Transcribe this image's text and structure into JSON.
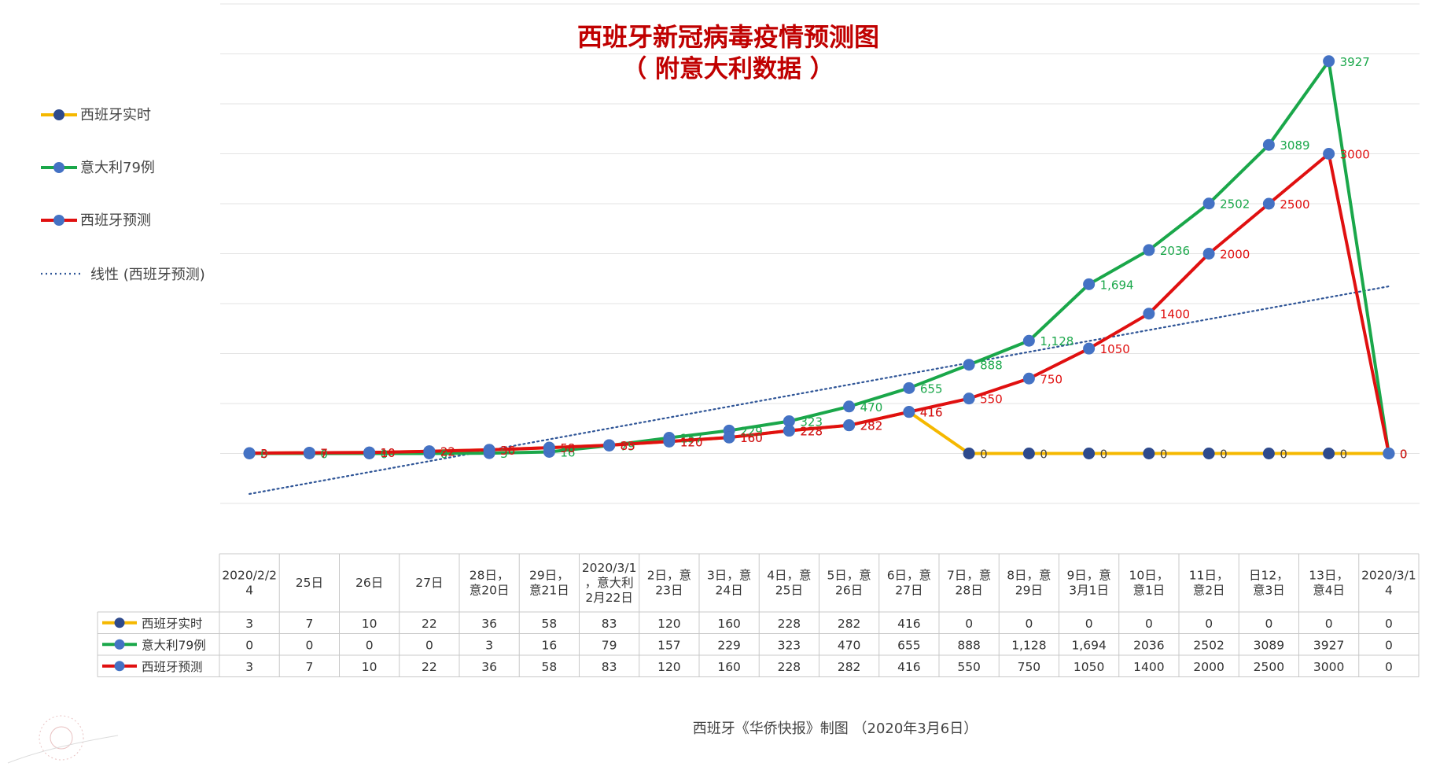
{
  "chart_data": {
    "type": "line",
    "title": "西班牙新冠病毒疫情预测图",
    "subtitle": "（ 附意大利数据 ）",
    "categories": [
      [
        "2020/2/2",
        "4"
      ],
      [
        "25日"
      ],
      [
        "26日"
      ],
      [
        "27日"
      ],
      [
        "28日，",
        "意20日"
      ],
      [
        "29日，",
        "意21日"
      ],
      [
        "2020/3/1",
        "，意大利",
        "2月22日"
      ],
      [
        "2日，意",
        "23日"
      ],
      [
        "3日，意",
        "24日"
      ],
      [
        "4日，意",
        "25日"
      ],
      [
        "5日，意",
        "26日"
      ],
      [
        "6日，意",
        "27日"
      ],
      [
        "7日，意",
        "28日"
      ],
      [
        "8日，意",
        "29日"
      ],
      [
        "9日，意",
        "3月1日"
      ],
      [
        "10日，",
        "意1日"
      ],
      [
        "11日，",
        "意2日"
      ],
      [
        "日12，",
        "意3日"
      ],
      [
        "13日，",
        "意4日"
      ],
      [
        "2020/3/1",
        "4"
      ]
    ],
    "series": [
      {
        "name": "西班牙实时",
        "color": "#f5b800",
        "marker": "#2e4a8c",
        "values": [
          3,
          7,
          10,
          22,
          36,
          58,
          83,
          120,
          160,
          228,
          282,
          416,
          0,
          0,
          0,
          0,
          0,
          0,
          0,
          0
        ],
        "labels": [
          "3",
          "7",
          "10",
          "22",
          "36",
          "58",
          "83",
          "120",
          "160",
          "228",
          "282",
          "416",
          "0",
          "0",
          "0",
          "0",
          "0",
          "0",
          "0",
          "0"
        ]
      },
      {
        "name": "意大利79例",
        "color": "#1aa74a",
        "marker": "#4472c4",
        "values": [
          0,
          0,
          0,
          0,
          3,
          16,
          79,
          157,
          229,
          323,
          470,
          655,
          888,
          1128,
          1694,
          2036,
          2502,
          3089,
          3927,
          0
        ],
        "labels": [
          "0",
          "0",
          "0",
          "0",
          "3",
          "16",
          "79",
          "157",
          "229",
          "323",
          "470",
          "655",
          "888",
          "1,128",
          "1,694",
          "2036",
          "2502",
          "3089",
          "3927",
          "0"
        ]
      },
      {
        "name": "西班牙预测",
        "color": "#e01010",
        "marker": "#4472c4",
        "values": [
          3,
          7,
          10,
          22,
          36,
          58,
          83,
          120,
          160,
          228,
          282,
          416,
          550,
          750,
          1050,
          1400,
          2000,
          2500,
          3000,
          0
        ],
        "labels": [
          "3",
          "7",
          "10",
          "22",
          "36",
          "58",
          "83",
          "120",
          "160",
          "228",
          "282",
          "416",
          "550",
          "750",
          "1050",
          "1400",
          "2000",
          "2500",
          "3000",
          "0"
        ]
      }
    ],
    "trendline": {
      "name": "线性 (西班牙预测)",
      "of_series": "西班牙预测",
      "type": "linear",
      "color": "#2f5597",
      "style": "dotted"
    },
    "ylim": [
      -500,
      4500
    ],
    "grid": true,
    "legend_position": "left",
    "data_table": true
  },
  "footer": "西班牙《华侨快报》制图 （2020年3月6日）"
}
